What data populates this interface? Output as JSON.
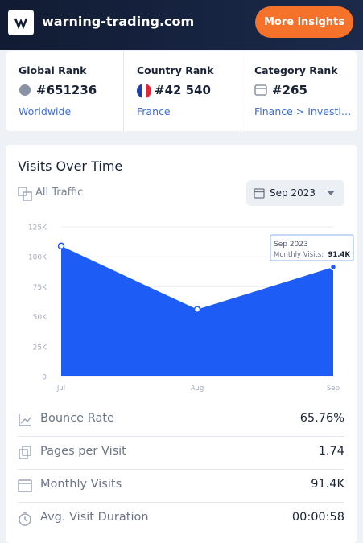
{
  "header": {
    "site": "warning-trading.com",
    "button": "More insights"
  },
  "ranks": [
    {
      "label": "Global Rank",
      "value": "#651236",
      "sub": "Worldwide"
    },
    {
      "label": "Country Rank",
      "value": "#42 540",
      "sub": "France"
    },
    {
      "label": "Category Rank",
      "value": "#265",
      "sub": "Finance > Investi…"
    }
  ],
  "visits": {
    "title": "Visits Over Time",
    "filter": "All Traffic",
    "date": "Sep 2023",
    "chart_data": {
      "type": "area",
      "categories": [
        "Jul",
        "Aug",
        "Sep"
      ],
      "values": [
        109000,
        56000,
        91400
      ],
      "color": "#1d5cf5",
      "ylim": [
        0,
        125000
      ],
      "yticks": [
        0,
        {
          "value": 25000,
          "label": "25K"
        },
        {
          "value": 50000,
          "label": "50K"
        },
        {
          "value": 75000,
          "label": "75K"
        },
        {
          "value": 100000,
          "label": "100K"
        },
        {
          "value": 125000,
          "label": "125K"
        }
      ],
      "grid": true,
      "tooltip": {
        "title": "Sep 2023",
        "label": "Monthly Visits:",
        "value": "91.4K"
      }
    }
  },
  "metrics": [
    {
      "label": "Bounce Rate",
      "value": "65.76%"
    },
    {
      "label": "Pages per Visit",
      "value": "1.74"
    },
    {
      "label": "Monthly Visits",
      "value": "91.4K"
    },
    {
      "label": "Avg. Visit Duration",
      "value": "00:00:58"
    }
  ]
}
